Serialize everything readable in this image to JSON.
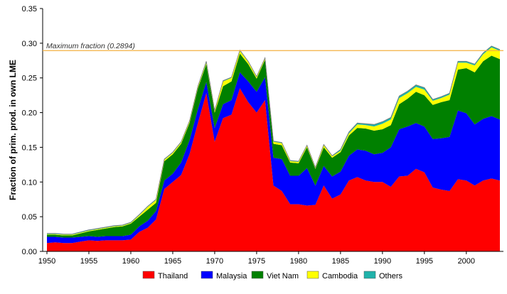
{
  "chart_data": {
    "type": "area",
    "stacked": true,
    "title": "",
    "xlabel": "",
    "ylabel": "Fraction of prim. prod. in own LME",
    "xlim": [
      1950,
      2004
    ],
    "ylim": [
      0,
      0.35
    ],
    "x_ticks": [
      "1950",
      "1955",
      "1960",
      "1965",
      "1970",
      "1975",
      "1980",
      "1985",
      "1990",
      "1995",
      "2000"
    ],
    "y_ticks": [
      "0.00",
      "0.05",
      "0.10",
      "0.15",
      "0.20",
      "0.25",
      "0.30",
      "0.35"
    ],
    "grid": false,
    "legend_position": "bottom",
    "reference_line": {
      "label": "Maximum fraction (0.2894)",
      "value": 0.2894,
      "color": "#f5b041"
    },
    "x": [
      1950,
      1951,
      1952,
      1953,
      1954,
      1955,
      1956,
      1957,
      1958,
      1959,
      1960,
      1961,
      1962,
      1963,
      1964,
      1965,
      1966,
      1967,
      1968,
      1969,
      1970,
      1971,
      1972,
      1973,
      1974,
      1975,
      1976,
      1977,
      1978,
      1979,
      1980,
      1981,
      1982,
      1983,
      1984,
      1985,
      1986,
      1987,
      1988,
      1989,
      1990,
      1991,
      1992,
      1993,
      1994,
      1995,
      1996,
      1997,
      1998,
      1999,
      2000,
      2001,
      2002,
      2003,
      2004
    ],
    "series": [
      {
        "name": "Thailand",
        "color": "#ff0000",
        "values": [
          0.012,
          0.013,
          0.012,
          0.012,
          0.014,
          0.016,
          0.015,
          0.016,
          0.016,
          0.016,
          0.017,
          0.028,
          0.034,
          0.046,
          0.09,
          0.1,
          0.11,
          0.14,
          0.185,
          0.228,
          0.158,
          0.192,
          0.197,
          0.235,
          0.215,
          0.2,
          0.218,
          0.095,
          0.087,
          0.068,
          0.068,
          0.066,
          0.067,
          0.095,
          0.076,
          0.082,
          0.102,
          0.107,
          0.102,
          0.1,
          0.1,
          0.093,
          0.108,
          0.109,
          0.119,
          0.114,
          0.092,
          0.089,
          0.087,
          0.104,
          0.102,
          0.095,
          0.102,
          0.105,
          0.102
        ]
      },
      {
        "name": "Malaysia",
        "color": "#0000ff",
        "values": [
          0.009,
          0.008,
          0.008,
          0.008,
          0.007,
          0.006,
          0.006,
          0.006,
          0.006,
          0.006,
          0.007,
          0.008,
          0.01,
          0.012,
          0.012,
          0.012,
          0.018,
          0.02,
          0.02,
          0.016,
          0.02,
          0.02,
          0.021,
          0.023,
          0.03,
          0.03,
          0.033,
          0.04,
          0.046,
          0.041,
          0.041,
          0.054,
          0.028,
          0.028,
          0.032,
          0.033,
          0.036,
          0.04,
          0.043,
          0.04,
          0.042,
          0.057,
          0.068,
          0.071,
          0.066,
          0.066,
          0.07,
          0.074,
          0.078,
          0.099,
          0.097,
          0.088,
          0.089,
          0.09,
          0.088
        ]
      },
      {
        "name": "Viet Nam",
        "color": "#008000",
        "values": [
          0.003,
          0.003,
          0.003,
          0.003,
          0.005,
          0.007,
          0.01,
          0.011,
          0.013,
          0.014,
          0.016,
          0.014,
          0.016,
          0.012,
          0.028,
          0.028,
          0.027,
          0.025,
          0.03,
          0.026,
          0.022,
          0.026,
          0.027,
          0.027,
          0.025,
          0.019,
          0.025,
          0.02,
          0.02,
          0.019,
          0.018,
          0.03,
          0.024,
          0.027,
          0.027,
          0.028,
          0.029,
          0.031,
          0.032,
          0.034,
          0.034,
          0.032,
          0.036,
          0.04,
          0.045,
          0.045,
          0.049,
          0.052,
          0.053,
          0.059,
          0.065,
          0.075,
          0.083,
          0.087,
          0.087
        ]
      },
      {
        "name": "Cambodia",
        "color": "#ffff00",
        "values": [
          0.001,
          0.001,
          0.001,
          0.001,
          0.001,
          0.001,
          0.001,
          0.001,
          0.001,
          0.001,
          0.001,
          0.002,
          0.004,
          0.004,
          0.002,
          0.002,
          0.002,
          0.002,
          0.002,
          0.002,
          0.002,
          0.007,
          0.005,
          0.004,
          0.003,
          0.002,
          0.002,
          0.003,
          0.003,
          0.002,
          0.002,
          0.002,
          0.001,
          0.003,
          0.002,
          0.002,
          0.003,
          0.005,
          0.005,
          0.006,
          0.008,
          0.008,
          0.009,
          0.008,
          0.007,
          0.008,
          0.006,
          0.006,
          0.008,
          0.01,
          0.008,
          0.01,
          0.01,
          0.012,
          0.012
        ]
      },
      {
        "name": "Others",
        "color": "#20b2aa",
        "values": [
          0.001,
          0.001,
          0.001,
          0.001,
          0.001,
          0.001,
          0.001,
          0.001,
          0.001,
          0.001,
          0.001,
          0.001,
          0.001,
          0.001,
          0.001,
          0.001,
          0.001,
          0.001,
          0.001,
          0.002,
          0.001,
          0.001,
          0.001,
          0.001,
          0.001,
          0.001,
          0.001,
          0.001,
          0.001,
          0.001,
          0.001,
          0.001,
          0.001,
          0.001,
          0.001,
          0.002,
          0.002,
          0.002,
          0.002,
          0.003,
          0.003,
          0.003,
          0.003,
          0.003,
          0.003,
          0.003,
          0.002,
          0.002,
          0.002,
          0.002,
          0.002,
          0.002,
          0.002,
          0.002,
          0.002
        ]
      }
    ]
  }
}
